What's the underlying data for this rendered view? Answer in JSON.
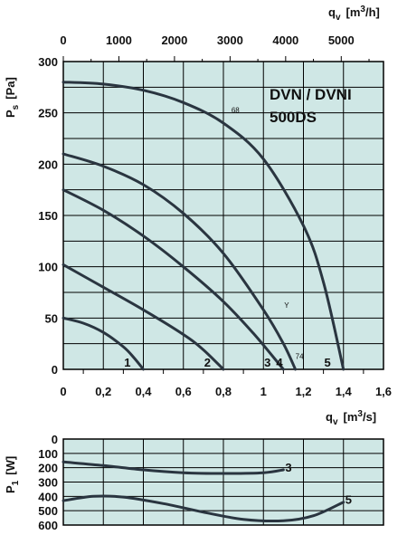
{
  "colors": {
    "plot_bg": "#cfe7e5",
    "curve": "#2a3540",
    "grid": "#000000"
  },
  "chart_data": [
    {
      "type": "line",
      "title": "DVN / DVNI",
      "subtitle": "500DS",
      "ylabel_main": "P",
      "ylabel_sub": "s",
      "ylabel_unit": "[Pa]",
      "xlabel_main": "q",
      "xlabel_sub": "v",
      "xlabel_unit": "[m",
      "xlabel_sup": "3",
      "xlabel_tail": "/s]",
      "x2label_main": "q",
      "x2label_sub": "v",
      "x2label_unit": "[m",
      "x2label_sup": "3",
      "x2label_tail": "/h]",
      "xlim": [
        0,
        1.6
      ],
      "ylim": [
        0,
        300
      ],
      "x2lim": [
        0,
        5760
      ],
      "x_ticks": [
        "0",
        "0,2",
        "0,4",
        "0,6",
        "0,8",
        "1",
        "1,2",
        "1,4",
        "1,6"
      ],
      "x_tick_values": [
        0,
        0.2,
        0.4,
        0.6,
        0.8,
        1.0,
        1.2,
        1.4,
        1.6
      ],
      "y_ticks": [
        "0",
        "50",
        "100",
        "150",
        "200",
        "250",
        "300"
      ],
      "y_tick_values": [
        0,
        50,
        100,
        150,
        200,
        250,
        300
      ],
      "x2_ticks": [
        "0",
        "1000",
        "2000",
        "3000",
        "4000",
        "5000"
      ],
      "x2_tick_values": [
        0,
        1000,
        2000,
        3000,
        4000,
        5000
      ],
      "grid": true,
      "annotations": [
        {
          "text": "68",
          "x": 1.05,
          "y": 250
        },
        {
          "text": "Y",
          "x": 1.38,
          "y": 60
        },
        {
          "text": "74",
          "x": 1.45,
          "y": 10
        }
      ],
      "series": [
        {
          "name": "1",
          "x": [
            0,
            0.1,
            0.2,
            0.3,
            0.35,
            0.4
          ],
          "y": [
            50,
            45,
            36,
            22,
            12,
            0
          ]
        },
        {
          "name": "2",
          "x": [
            0,
            0.2,
            0.4,
            0.6,
            0.7,
            0.8
          ],
          "y": [
            102,
            80,
            58,
            34,
            19,
            0
          ]
        },
        {
          "name": "3",
          "x": [
            0,
            0.2,
            0.4,
            0.6,
            0.8,
            0.95,
            1.1
          ],
          "y": [
            175,
            155,
            130,
            100,
            66,
            35,
            0
          ]
        },
        {
          "name": "4",
          "x": [
            0,
            0.2,
            0.4,
            0.6,
            0.8,
            1.0,
            1.1,
            1.16
          ],
          "y": [
            210,
            198,
            180,
            152,
            113,
            58,
            25,
            0
          ]
        },
        {
          "name": "5",
          "x": [
            0,
            0.2,
            0.4,
            0.6,
            0.8,
            1.0,
            1.2,
            1.3,
            1.4
          ],
          "y": [
            280,
            278,
            272,
            260,
            240,
            205,
            140,
            85,
            0
          ]
        }
      ]
    },
    {
      "type": "line",
      "ylabel_main": "P",
      "ylabel_sub": "1",
      "ylabel_unit": "[W]",
      "xlim": [
        0,
        1.6
      ],
      "ylim": [
        600,
        0
      ],
      "y_ticks": [
        "0",
        "100",
        "200",
        "300",
        "400",
        "500",
        "600"
      ],
      "y_tick_values": [
        0,
        100,
        200,
        300,
        400,
        500,
        600
      ],
      "grid": true,
      "series": [
        {
          "name": "3",
          "x": [
            0,
            0.2,
            0.4,
            0.6,
            0.8,
            1.0,
            1.1
          ],
          "y": [
            160,
            185,
            215,
            235,
            240,
            235,
            215
          ]
        },
        {
          "name": "5",
          "x": [
            0,
            0.15,
            0.3,
            0.5,
            0.7,
            0.9,
            1.1,
            1.25,
            1.4
          ],
          "y": [
            430,
            400,
            405,
            450,
            510,
            560,
            570,
            535,
            440
          ]
        }
      ]
    }
  ]
}
